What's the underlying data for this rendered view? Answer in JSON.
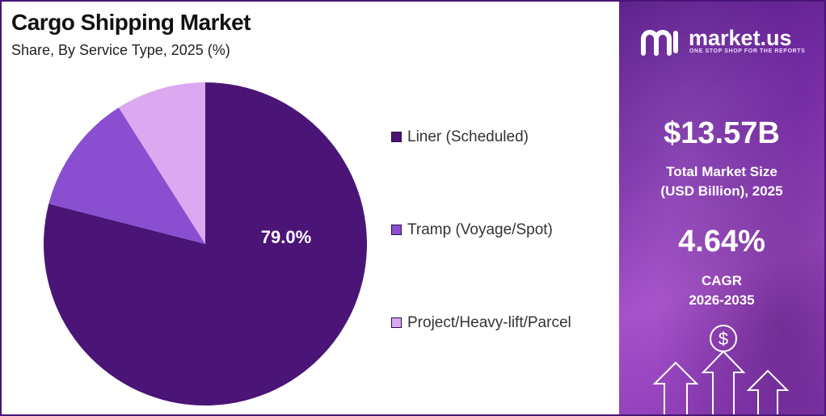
{
  "header": {
    "title": "Cargo Shipping Market",
    "subtitle": "Share, By Service Type, 2025 (%)"
  },
  "chart_data": {
    "type": "pie",
    "title": "Cargo Shipping Market",
    "subtitle": "Share, By Service Type, 2025 (%)",
    "categories": [
      "Liner (Scheduled)",
      "Tramp (Voyage/Spot)",
      "Project/Heavy-lift/Parcel"
    ],
    "values": [
      79.0,
      12.0,
      9.0
    ],
    "data_labels": [
      "79.0%",
      "",
      ""
    ],
    "colors": [
      "#4a1577",
      "#8a4fd0",
      "#dca8f0"
    ],
    "legend_position": "right"
  },
  "sidebar": {
    "brand": {
      "name": "market.us",
      "tagline": "ONE STOP SHOP FOR THE REPORTS"
    },
    "market_size": {
      "value": "$13.57B",
      "label_line1": "Total Market Size",
      "label_line2": "(USD Billion), 2025"
    },
    "cagr": {
      "value": "4.64%",
      "label_line1": "CAGR",
      "label_line2": "2026-2035"
    },
    "icons": [
      "dollar-icon",
      "up-arrow-icon"
    ]
  }
}
